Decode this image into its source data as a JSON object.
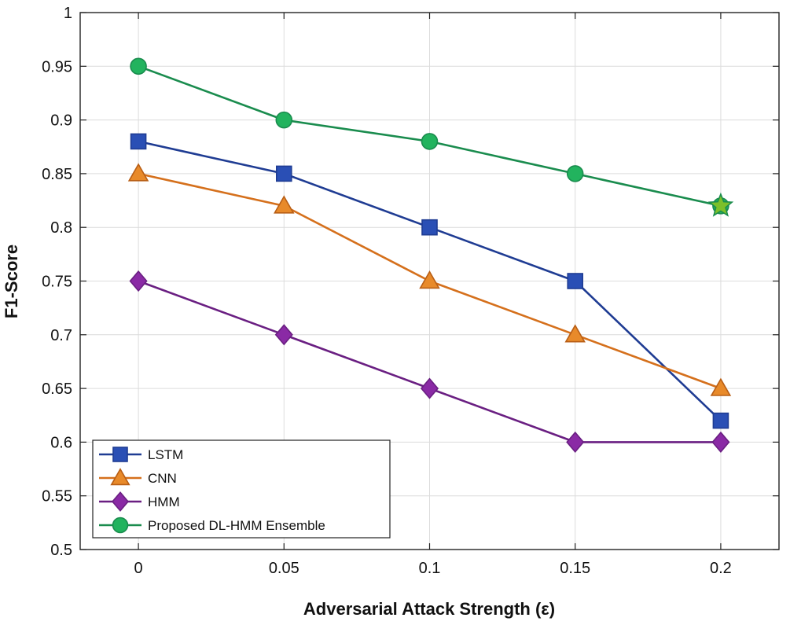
{
  "chart_data": {
    "type": "line",
    "title": "",
    "xlabel": "Adversarial Attack Strength (ε)",
    "ylabel": "F1-Score",
    "x": [
      0,
      0.05,
      0.1,
      0.15,
      0.2
    ],
    "x_tick_labels": [
      "0",
      "0.05",
      "0.1",
      "0.15",
      "0.2"
    ],
    "xlim": [
      -0.02,
      0.22
    ],
    "ylim": [
      0.5,
      1.0
    ],
    "y_ticks": [
      0.5,
      0.55,
      0.6,
      0.65,
      0.7,
      0.75,
      0.8,
      0.85,
      0.9,
      0.95,
      1.0
    ],
    "y_tick_labels": [
      "0.5",
      "0.55",
      "0.6",
      "0.65",
      "0.7",
      "0.75",
      "0.8",
      "0.85",
      "0.9",
      "0.95",
      "1"
    ],
    "grid": true,
    "legend_position": "bottom-left",
    "series": [
      {
        "name": "LSTM",
        "marker": "square",
        "line_color": "#1f3c93",
        "marker_fill": "#2a4fb5",
        "marker_edge": "#1f3c93",
        "values": [
          0.88,
          0.85,
          0.8,
          0.75,
          0.62
        ]
      },
      {
        "name": "CNN",
        "marker": "triangle",
        "line_color": "#d5701c",
        "marker_fill": "#e88a2a",
        "marker_edge": "#b85e15",
        "values": [
          0.85,
          0.82,
          0.75,
          0.7,
          0.65
        ]
      },
      {
        "name": "HMM",
        "marker": "diamond",
        "line_color": "#6a1f82",
        "marker_fill": "#8a2aa5",
        "marker_edge": "#6a1f82",
        "values": [
          0.75,
          0.7,
          0.65,
          0.6,
          0.6
        ]
      },
      {
        "name": "Proposed DL-HMM Ensemble",
        "marker": "circle",
        "line_color": "#1a8c4e",
        "marker_fill": "#22b35e",
        "marker_edge": "#1a8c4e",
        "values": [
          0.95,
          0.9,
          0.88,
          0.85,
          0.82
        ]
      }
    ],
    "annotations": [
      {
        "type": "star-marker",
        "x": 0.2,
        "y": 0.82,
        "fill": "#7cc02a",
        "edge": "#1a8c4e"
      }
    ]
  }
}
